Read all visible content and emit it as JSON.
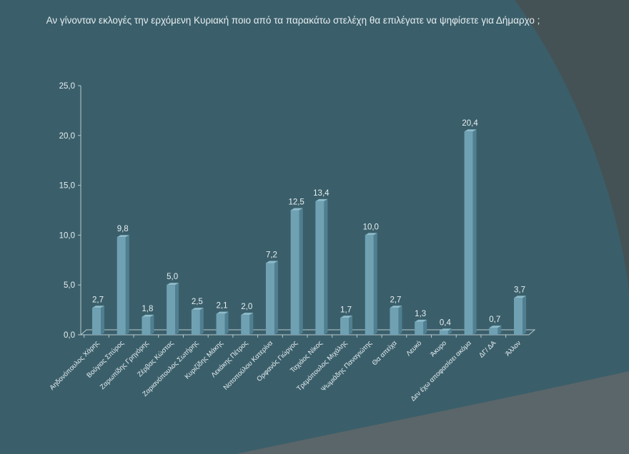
{
  "chart_data": {
    "type": "bar",
    "title": "Αν γίνονταν εκλογές την ερχόμενη Κυριακή ποιο από τα παρακάτω στελέχη θα επιλέγατε να ψηφίσετε για Δήμαρχο ;",
    "categories": [
      "Αηδονόπουλος Χάρης",
      "Βούγιας Σπύρος",
      "Ζαρωπίδης Γρηγόρης",
      "Ζέρβας Κώστας",
      "Ζαριανόπουλος Σωτήρης",
      "Κυριζίδης Μάκης",
      "Λεκάκης Πέτρος",
      "Νοτοπούλου Κατερίνα",
      "Ορφανός Γιώργος",
      "Ταχιάος Νίκος",
      "Τρεμόπουλος Μιχάλης",
      "Ψωμιάδης Παναγιώτης",
      "Θα απείχα",
      "Λευκό",
      "Άκυρο",
      "Δεν έχω αποφασίσει ακόμα",
      "ΔΓ/ ΔΑ",
      "Άλλον"
    ],
    "values": [
      2.7,
      9.8,
      1.8,
      5.0,
      2.5,
      2.1,
      2.0,
      7.2,
      12.5,
      13.4,
      1.7,
      10.0,
      2.7,
      1.3,
      0.4,
      20.4,
      0.7,
      3.7
    ],
    "data_labels": [
      "2,7",
      "9,8",
      "1,8",
      "5,0",
      "2,5",
      "2,1",
      "2,0",
      "7,2",
      "12,5",
      "13,4",
      "1,7",
      "10,0",
      "2,7",
      "1,3",
      "0,4",
      "20,4",
      "0,7",
      "3,7"
    ],
    "yticks": [
      "0,0",
      "5,0",
      "10,0",
      "15,0",
      "20,0",
      "25,0"
    ],
    "ylim": [
      0,
      25
    ],
    "xlabel": "",
    "ylabel": "",
    "grid": false,
    "legend": "none",
    "colors": {
      "bar": "#6fa1b3",
      "bar_side": "#4f7f90",
      "background": "#3a5f6b",
      "text": "#e8eef0"
    }
  }
}
